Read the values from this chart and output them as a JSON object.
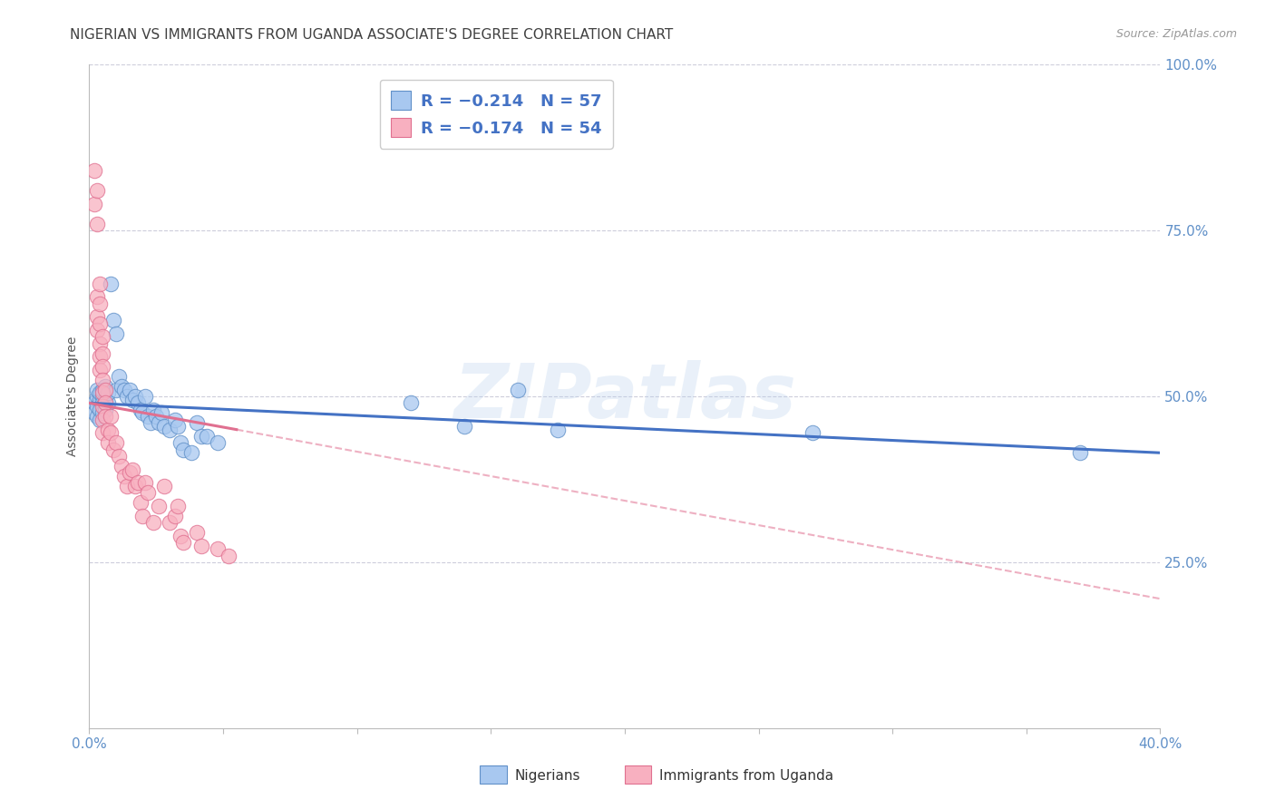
{
  "title": "NIGERIAN VS IMMIGRANTS FROM UGANDA ASSOCIATE'S DEGREE CORRELATION CHART",
  "source": "Source: ZipAtlas.com",
  "ylabel": "Associate's Degree",
  "xmin": 0.0,
  "xmax": 0.4,
  "ymin": 0.0,
  "ymax": 1.0,
  "yticks": [
    0.25,
    0.5,
    0.75,
    1.0
  ],
  "ytick_labels": [
    "25.0%",
    "50.0%",
    "75.0%",
    "100.0%"
  ],
  "watermark": "ZIPatlas",
  "nigerian_scatter": [
    [
      0.002,
      0.49
    ],
    [
      0.002,
      0.475
    ],
    [
      0.003,
      0.5
    ],
    [
      0.003,
      0.47
    ],
    [
      0.003,
      0.51
    ],
    [
      0.003,
      0.485
    ],
    [
      0.004,
      0.495
    ],
    [
      0.004,
      0.48
    ],
    [
      0.004,
      0.505
    ],
    [
      0.004,
      0.465
    ],
    [
      0.005,
      0.5
    ],
    [
      0.005,
      0.49
    ],
    [
      0.005,
      0.51
    ],
    [
      0.005,
      0.475
    ],
    [
      0.006,
      0.495
    ],
    [
      0.006,
      0.515
    ],
    [
      0.006,
      0.48
    ],
    [
      0.007,
      0.49
    ],
    [
      0.007,
      0.505
    ],
    [
      0.008,
      0.67
    ],
    [
      0.009,
      0.615
    ],
    [
      0.01,
      0.595
    ],
    [
      0.01,
      0.51
    ],
    [
      0.011,
      0.53
    ],
    [
      0.012,
      0.515
    ],
    [
      0.013,
      0.51
    ],
    [
      0.014,
      0.5
    ],
    [
      0.015,
      0.51
    ],
    [
      0.016,
      0.495
    ],
    [
      0.017,
      0.5
    ],
    [
      0.018,
      0.49
    ],
    [
      0.019,
      0.48
    ],
    [
      0.02,
      0.475
    ],
    [
      0.021,
      0.5
    ],
    [
      0.022,
      0.47
    ],
    [
      0.023,
      0.46
    ],
    [
      0.024,
      0.48
    ],
    [
      0.025,
      0.47
    ],
    [
      0.026,
      0.46
    ],
    [
      0.027,
      0.475
    ],
    [
      0.028,
      0.455
    ],
    [
      0.03,
      0.45
    ],
    [
      0.032,
      0.465
    ],
    [
      0.033,
      0.455
    ],
    [
      0.034,
      0.43
    ],
    [
      0.035,
      0.42
    ],
    [
      0.038,
      0.415
    ],
    [
      0.04,
      0.46
    ],
    [
      0.042,
      0.44
    ],
    [
      0.044,
      0.44
    ],
    [
      0.048,
      0.43
    ],
    [
      0.12,
      0.49
    ],
    [
      0.14,
      0.455
    ],
    [
      0.16,
      0.51
    ],
    [
      0.175,
      0.45
    ],
    [
      0.27,
      0.445
    ],
    [
      0.37,
      0.415
    ]
  ],
  "uganda_scatter": [
    [
      0.002,
      0.84
    ],
    [
      0.002,
      0.79
    ],
    [
      0.003,
      0.81
    ],
    [
      0.003,
      0.76
    ],
    [
      0.003,
      0.65
    ],
    [
      0.003,
      0.62
    ],
    [
      0.003,
      0.6
    ],
    [
      0.004,
      0.67
    ],
    [
      0.004,
      0.64
    ],
    [
      0.004,
      0.61
    ],
    [
      0.004,
      0.58
    ],
    [
      0.004,
      0.56
    ],
    [
      0.004,
      0.54
    ],
    [
      0.005,
      0.59
    ],
    [
      0.005,
      0.565
    ],
    [
      0.005,
      0.545
    ],
    [
      0.005,
      0.525
    ],
    [
      0.005,
      0.505
    ],
    [
      0.005,
      0.485
    ],
    [
      0.005,
      0.465
    ],
    [
      0.005,
      0.445
    ],
    [
      0.006,
      0.51
    ],
    [
      0.006,
      0.49
    ],
    [
      0.006,
      0.47
    ],
    [
      0.007,
      0.45
    ],
    [
      0.007,
      0.43
    ],
    [
      0.008,
      0.47
    ],
    [
      0.008,
      0.445
    ],
    [
      0.009,
      0.42
    ],
    [
      0.01,
      0.43
    ],
    [
      0.011,
      0.41
    ],
    [
      0.012,
      0.395
    ],
    [
      0.013,
      0.38
    ],
    [
      0.014,
      0.365
    ],
    [
      0.015,
      0.385
    ],
    [
      0.016,
      0.39
    ],
    [
      0.017,
      0.365
    ],
    [
      0.018,
      0.37
    ],
    [
      0.019,
      0.34
    ],
    [
      0.02,
      0.32
    ],
    [
      0.021,
      0.37
    ],
    [
      0.022,
      0.355
    ],
    [
      0.024,
      0.31
    ],
    [
      0.026,
      0.335
    ],
    [
      0.028,
      0.365
    ],
    [
      0.03,
      0.31
    ],
    [
      0.032,
      0.32
    ],
    [
      0.033,
      0.335
    ],
    [
      0.034,
      0.29
    ],
    [
      0.035,
      0.28
    ],
    [
      0.04,
      0.295
    ],
    [
      0.042,
      0.275
    ],
    [
      0.048,
      0.27
    ],
    [
      0.052,
      0.26
    ]
  ],
  "blue_line": {
    "x0": 0.0,
    "y0": 0.49,
    "x1": 0.4,
    "y1": 0.415
  },
  "pink_line_solid": {
    "x0": 0.0,
    "y0": 0.49,
    "x1": 0.055,
    "y1": 0.45
  },
  "pink_line_dashed": {
    "x0": 0.055,
    "y0": 0.45,
    "x1": 0.4,
    "y1": 0.195
  },
  "nigerian_color": "#A8C8F0",
  "uganda_color": "#F8B0C0",
  "nigerian_edge_color": "#6090C8",
  "uganda_edge_color": "#E07090",
  "blue_line_color": "#4472C4",
  "pink_line_color": "#E07090",
  "background_color": "#FFFFFF",
  "grid_color": "#C8C8D8",
  "title_color": "#404040",
  "right_axis_color": "#6090C8",
  "title_fontsize": 11,
  "axis_label_fontsize": 10,
  "tick_fontsize": 11
}
